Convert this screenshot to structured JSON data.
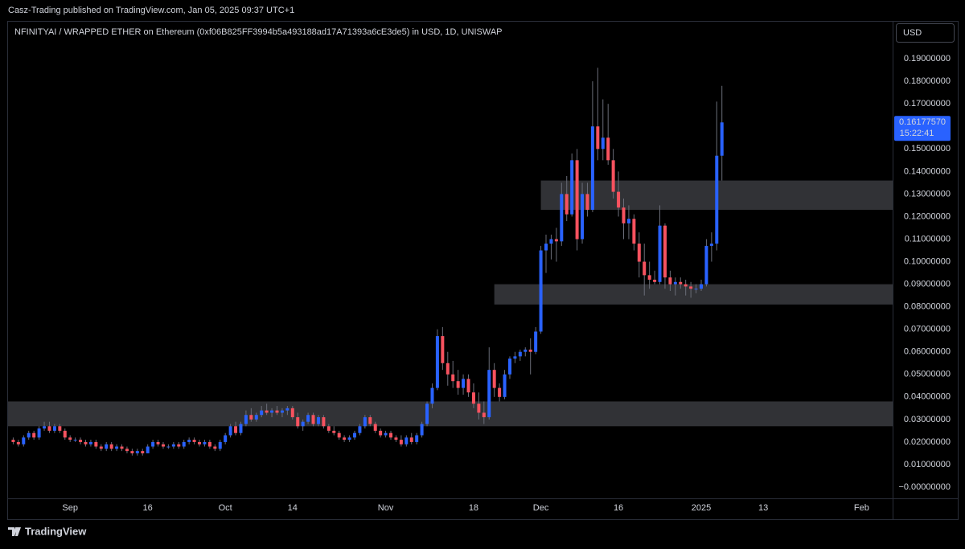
{
  "header": {
    "publisher": "Casz-Trading published on TradingView.com, Jan 05, 2025 09:37 UTC+1",
    "brand": "TradingView"
  },
  "chart_data": {
    "type": "candlestick",
    "title": "NFINITYAI / WRAPPED ETHER on Ethereum (0xf06B825FF3994b5a493188ad17A71393a6cE3de5) in USD, 1D, UNISWAP",
    "currency": "USD",
    "last_price_label": "0.16177570",
    "countdown": "15:22:41",
    "up_color": "#2962ff",
    "down_color": "#f7525f",
    "wick_color": "#6a6d78",
    "zone_color": "#3a3b40",
    "grid": false,
    "xlim": [
      "08-20",
      "02-07"
    ],
    "xticks": [
      {
        "value": "09-01",
        "label": "Sep"
      },
      {
        "value": "09-16",
        "label": "16"
      },
      {
        "value": "10-01",
        "label": "Oct"
      },
      {
        "value": "10-14",
        "label": "14"
      },
      {
        "value": "11-01",
        "label": "Nov"
      },
      {
        "value": "11-18",
        "label": "18"
      },
      {
        "value": "12-01",
        "label": "Dec"
      },
      {
        "value": "12-16",
        "label": "16"
      },
      {
        "value": "01-01",
        "label": "2025"
      },
      {
        "value": "01-13",
        "label": "13"
      },
      {
        "value": "02-01",
        "label": "Feb"
      }
    ],
    "ylim": [
      -0.0139,
      0.2068
    ],
    "yticks": [
      {
        "value": 0,
        "label": "−0.00000000"
      },
      {
        "value": 0.01,
        "label": "0.01000000"
      },
      {
        "value": 0.02,
        "label": "0.02000000"
      },
      {
        "value": 0.03,
        "label": "0.03000000"
      },
      {
        "value": 0.04,
        "label": "0.04000000"
      },
      {
        "value": 0.05,
        "label": "0.05000000"
      },
      {
        "value": 0.06,
        "label": "0.06000000"
      },
      {
        "value": 0.07,
        "label": "0.07000000"
      },
      {
        "value": 0.08,
        "label": "0.08000000"
      },
      {
        "value": 0.09,
        "label": "0.09000000"
      },
      {
        "value": 0.1,
        "label": "0.10000000"
      },
      {
        "value": 0.11,
        "label": "0.11000000"
      },
      {
        "value": 0.12,
        "label": "0.12000000"
      },
      {
        "value": 0.13,
        "label": "0.13000000"
      },
      {
        "value": 0.14,
        "label": "0.14000000"
      },
      {
        "value": 0.15,
        "label": "0.15000000"
      },
      {
        "value": 0.16,
        "label": "0.16000000"
      },
      {
        "value": 0.17,
        "label": "0.17000000"
      },
      {
        "value": 0.18,
        "label": "0.18000000"
      },
      {
        "value": 0.19,
        "label": "0.19000000"
      }
    ],
    "zones": [
      {
        "low": 0.027,
        "high": 0.038,
        "start": "08-20"
      },
      {
        "low": 0.081,
        "high": 0.09,
        "start": "11-22"
      },
      {
        "low": 0.123,
        "high": 0.136,
        "start": "12-01"
      }
    ],
    "x": [
      "08-21",
      "08-22",
      "08-23",
      "08-24",
      "08-25",
      "08-26",
      "08-27",
      "08-28",
      "08-29",
      "08-30",
      "08-31",
      "09-01",
      "09-02",
      "09-03",
      "09-04",
      "09-05",
      "09-06",
      "09-07",
      "09-08",
      "09-09",
      "09-10",
      "09-11",
      "09-12",
      "09-13",
      "09-14",
      "09-15",
      "09-16",
      "09-17",
      "09-18",
      "09-19",
      "09-20",
      "09-21",
      "09-22",
      "09-23",
      "09-24",
      "09-25",
      "09-26",
      "09-27",
      "09-28",
      "09-29",
      "09-30",
      "10-01",
      "10-02",
      "10-03",
      "10-04",
      "10-05",
      "10-06",
      "10-07",
      "10-08",
      "10-09",
      "10-10",
      "10-11",
      "10-12",
      "10-13",
      "10-14",
      "10-15",
      "10-16",
      "10-17",
      "10-18",
      "10-19",
      "10-20",
      "10-21",
      "10-22",
      "10-23",
      "10-24",
      "10-25",
      "10-26",
      "10-27",
      "10-28",
      "10-29",
      "10-30",
      "10-31",
      "11-01",
      "11-02",
      "11-03",
      "11-04",
      "11-05",
      "11-06",
      "11-07",
      "11-08",
      "11-09",
      "11-10",
      "11-11",
      "11-12",
      "11-13",
      "11-14",
      "11-15",
      "11-16",
      "11-17",
      "11-18",
      "11-19",
      "11-20",
      "11-21",
      "11-22",
      "11-23",
      "11-24",
      "11-25",
      "11-26",
      "11-27",
      "11-28",
      "11-29",
      "11-30",
      "12-01",
      "12-02",
      "12-03",
      "12-04",
      "12-05",
      "12-06",
      "12-07",
      "12-08",
      "12-09",
      "12-10",
      "12-11",
      "12-12",
      "12-13",
      "12-14",
      "12-15",
      "12-16",
      "12-17",
      "12-18",
      "12-19",
      "12-20",
      "12-21",
      "12-22",
      "12-23",
      "12-24",
      "12-25",
      "12-26",
      "12-27",
      "12-28",
      "12-29",
      "12-30",
      "12-31",
      "01-01",
      "01-02",
      "01-03",
      "01-04",
      "01-05"
    ],
    "ohlc": [
      [
        0.021,
        0.022,
        0.019,
        0.02
      ],
      [
        0.02,
        0.021,
        0.018,
        0.019
      ],
      [
        0.019,
        0.023,
        0.018,
        0.022
      ],
      [
        0.022,
        0.025,
        0.021,
        0.024
      ],
      [
        0.024,
        0.025,
        0.021,
        0.022
      ],
      [
        0.022,
        0.027,
        0.021,
        0.026
      ],
      [
        0.026,
        0.029,
        0.025,
        0.027
      ],
      [
        0.027,
        0.029,
        0.024,
        0.025
      ],
      [
        0.025,
        0.028,
        0.024,
        0.027
      ],
      [
        0.027,
        0.028,
        0.024,
        0.025
      ],
      [
        0.025,
        0.026,
        0.021,
        0.022
      ],
      [
        0.022,
        0.023,
        0.02,
        0.021
      ],
      [
        0.021,
        0.022,
        0.02,
        0.021
      ],
      [
        0.021,
        0.022,
        0.019,
        0.02
      ],
      [
        0.02,
        0.021,
        0.018,
        0.019
      ],
      [
        0.019,
        0.021,
        0.018,
        0.02
      ],
      [
        0.02,
        0.021,
        0.017,
        0.018
      ],
      [
        0.018,
        0.019,
        0.016,
        0.017
      ],
      [
        0.017,
        0.02,
        0.016,
        0.019
      ],
      [
        0.019,
        0.02,
        0.016,
        0.017
      ],
      [
        0.017,
        0.019,
        0.016,
        0.018
      ],
      [
        0.018,
        0.019,
        0.016,
        0.017
      ],
      [
        0.017,
        0.018,
        0.015,
        0.016
      ],
      [
        0.016,
        0.017,
        0.014,
        0.015
      ],
      [
        0.015,
        0.017,
        0.014,
        0.016
      ],
      [
        0.016,
        0.017,
        0.014,
        0.015
      ],
      [
        0.015,
        0.019,
        0.015,
        0.018
      ],
      [
        0.018,
        0.021,
        0.017,
        0.02
      ],
      [
        0.02,
        0.021,
        0.018,
        0.019
      ],
      [
        0.019,
        0.02,
        0.017,
        0.018
      ],
      [
        0.018,
        0.019,
        0.017,
        0.018
      ],
      [
        0.018,
        0.02,
        0.017,
        0.019
      ],
      [
        0.019,
        0.02,
        0.017,
        0.018
      ],
      [
        0.018,
        0.021,
        0.017,
        0.02
      ],
      [
        0.02,
        0.022,
        0.019,
        0.021
      ],
      [
        0.021,
        0.022,
        0.019,
        0.02
      ],
      [
        0.02,
        0.021,
        0.018,
        0.019
      ],
      [
        0.019,
        0.021,
        0.018,
        0.02
      ],
      [
        0.02,
        0.021,
        0.017,
        0.018
      ],
      [
        0.018,
        0.019,
        0.016,
        0.017
      ],
      [
        0.017,
        0.021,
        0.016,
        0.02
      ],
      [
        0.02,
        0.024,
        0.019,
        0.023
      ],
      [
        0.023,
        0.028,
        0.022,
        0.027
      ],
      [
        0.027,
        0.029,
        0.023,
        0.024
      ],
      [
        0.024,
        0.029,
        0.023,
        0.028
      ],
      [
        0.028,
        0.034,
        0.027,
        0.032
      ],
      [
        0.032,
        0.035,
        0.029,
        0.03
      ],
      [
        0.03,
        0.033,
        0.029,
        0.032
      ],
      [
        0.032,
        0.036,
        0.031,
        0.034
      ],
      [
        0.034,
        0.037,
        0.032,
        0.033
      ],
      [
        0.033,
        0.035,
        0.031,
        0.034
      ],
      [
        0.034,
        0.036,
        0.032,
        0.033
      ],
      [
        0.033,
        0.035,
        0.031,
        0.034
      ],
      [
        0.034,
        0.036,
        0.032,
        0.035
      ],
      [
        0.035,
        0.036,
        0.03,
        0.031
      ],
      [
        0.031,
        0.033,
        0.026,
        0.027
      ],
      [
        0.027,
        0.03,
        0.025,
        0.029
      ],
      [
        0.029,
        0.033,
        0.028,
        0.032
      ],
      [
        0.032,
        0.033,
        0.027,
        0.028
      ],
      [
        0.028,
        0.032,
        0.027,
        0.031
      ],
      [
        0.031,
        0.032,
        0.026,
        0.027
      ],
      [
        0.027,
        0.028,
        0.024,
        0.025
      ],
      [
        0.025,
        0.027,
        0.023,
        0.024
      ],
      [
        0.024,
        0.025,
        0.021,
        0.022
      ],
      [
        0.022,
        0.023,
        0.02,
        0.021
      ],
      [
        0.021,
        0.023,
        0.02,
        0.022
      ],
      [
        0.022,
        0.025,
        0.021,
        0.024
      ],
      [
        0.024,
        0.028,
        0.023,
        0.027
      ],
      [
        0.027,
        0.032,
        0.026,
        0.031
      ],
      [
        0.031,
        0.032,
        0.027,
        0.028
      ],
      [
        0.028,
        0.029,
        0.024,
        0.025
      ],
      [
        0.025,
        0.026,
        0.022,
        0.023
      ],
      [
        0.023,
        0.025,
        0.022,
        0.024
      ],
      [
        0.024,
        0.025,
        0.021,
        0.022
      ],
      [
        0.022,
        0.023,
        0.02,
        0.021
      ],
      [
        0.021,
        0.023,
        0.018,
        0.019
      ],
      [
        0.019,
        0.023,
        0.018,
        0.022
      ],
      [
        0.022,
        0.024,
        0.019,
        0.02
      ],
      [
        0.02,
        0.024,
        0.019,
        0.023
      ],
      [
        0.023,
        0.029,
        0.022,
        0.028
      ],
      [
        0.028,
        0.038,
        0.027,
        0.037
      ],
      [
        0.037,
        0.046,
        0.035,
        0.044
      ],
      [
        0.044,
        0.07,
        0.043,
        0.067
      ],
      [
        0.067,
        0.071,
        0.052,
        0.055
      ],
      [
        0.055,
        0.06,
        0.045,
        0.05
      ],
      [
        0.05,
        0.056,
        0.044,
        0.047
      ],
      [
        0.047,
        0.052,
        0.041,
        0.044
      ],
      [
        0.044,
        0.05,
        0.041,
        0.048
      ],
      [
        0.048,
        0.05,
        0.04,
        0.042
      ],
      [
        0.042,
        0.046,
        0.035,
        0.037
      ],
      [
        0.037,
        0.042,
        0.03,
        0.033
      ],
      [
        0.033,
        0.038,
        0.028,
        0.031
      ],
      [
        0.031,
        0.062,
        0.03,
        0.052
      ],
      [
        0.052,
        0.055,
        0.04,
        0.044
      ],
      [
        0.044,
        0.046,
        0.038,
        0.04
      ],
      [
        0.04,
        0.052,
        0.039,
        0.05
      ],
      [
        0.05,
        0.058,
        0.048,
        0.057
      ],
      [
        0.057,
        0.06,
        0.055,
        0.058
      ],
      [
        0.058,
        0.061,
        0.056,
        0.06
      ],
      [
        0.06,
        0.062,
        0.058,
        0.061
      ],
      [
        0.061,
        0.066,
        0.05,
        0.06
      ],
      [
        0.06,
        0.071,
        0.059,
        0.069
      ],
      [
        0.069,
        0.107,
        0.068,
        0.105
      ],
      [
        0.105,
        0.112,
        0.095,
        0.108
      ],
      [
        0.108,
        0.112,
        0.101,
        0.11
      ],
      [
        0.11,
        0.115,
        0.1,
        0.109
      ],
      [
        0.109,
        0.135,
        0.107,
        0.13
      ],
      [
        0.13,
        0.138,
        0.118,
        0.121
      ],
      [
        0.121,
        0.148,
        0.12,
        0.145
      ],
      [
        0.145,
        0.15,
        0.105,
        0.11
      ],
      [
        0.11,
        0.135,
        0.108,
        0.13
      ],
      [
        0.13,
        0.135,
        0.12,
        0.123
      ],
      [
        0.123,
        0.18,
        0.122,
        0.16
      ],
      [
        0.16,
        0.186,
        0.145,
        0.15
      ],
      [
        0.15,
        0.172,
        0.145,
        0.155
      ],
      [
        0.155,
        0.17,
        0.143,
        0.145
      ],
      [
        0.145,
        0.15,
        0.128,
        0.131
      ],
      [
        0.131,
        0.14,
        0.12,
        0.124
      ],
      [
        0.124,
        0.128,
        0.11,
        0.117
      ],
      [
        0.117,
        0.125,
        0.11,
        0.119
      ],
      [
        0.119,
        0.121,
        0.105,
        0.108
      ],
      [
        0.108,
        0.113,
        0.093,
        0.1
      ],
      [
        0.1,
        0.108,
        0.085,
        0.094
      ],
      [
        0.094,
        0.1,
        0.088,
        0.092
      ],
      [
        0.092,
        0.096,
        0.09,
        0.091
      ],
      [
        0.091,
        0.125,
        0.09,
        0.116
      ],
      [
        0.116,
        0.117,
        0.088,
        0.093
      ],
      [
        0.093,
        0.096,
        0.087,
        0.09
      ],
      [
        0.09,
        0.093,
        0.085,
        0.091
      ],
      [
        0.091,
        0.093,
        0.088,
        0.09
      ],
      [
        0.09,
        0.092,
        0.085,
        0.089
      ],
      [
        0.089,
        0.091,
        0.084,
        0.088
      ],
      [
        0.088,
        0.09,
        0.086,
        0.088
      ],
      [
        0.088,
        0.092,
        0.087,
        0.09
      ],
      [
        0.09,
        0.11,
        0.089,
        0.107
      ],
      [
        0.107,
        0.113,
        0.1,
        0.108
      ],
      [
        0.108,
        0.171,
        0.105,
        0.147
      ],
      [
        0.147,
        0.178,
        0.136,
        0.1617757
      ]
    ]
  }
}
